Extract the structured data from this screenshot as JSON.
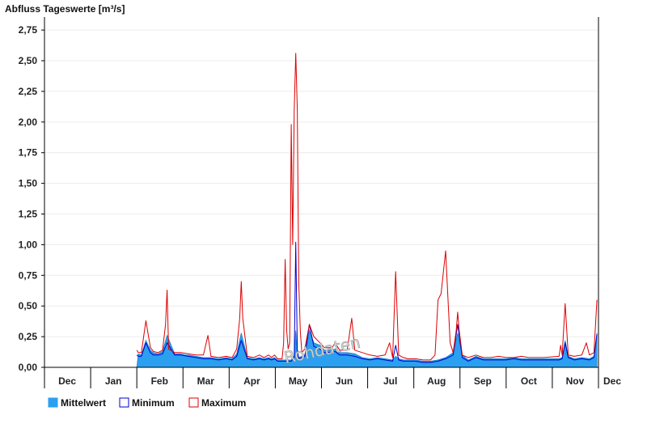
{
  "chart_data": {
    "type": "area",
    "title": "Abfluss Tageswerte [m³/s]",
    "watermark": "Rohdaten",
    "ylim": [
      0,
      2.83
    ],
    "y_ticks": [
      "0,00",
      "0,25",
      "0,50",
      "0,75",
      "1,00",
      "1,25",
      "1,50",
      "1,75",
      "2,00",
      "2,25",
      "2,50",
      "2,75"
    ],
    "y_tick_values": [
      0,
      0.25,
      0.5,
      0.75,
      1.0,
      1.25,
      1.5,
      1.75,
      2.0,
      2.25,
      2.5,
      2.75
    ],
    "x_ticks": [
      "Dec",
      "Jan",
      "Feb",
      "Mar",
      "Apr",
      "May",
      "Jun",
      "Jul",
      "Aug",
      "Sep",
      "Oct",
      "Nov",
      "Dec"
    ],
    "x_range_days": [
      0,
      366
    ],
    "grid": true,
    "legend_position": "bottom-left",
    "series": [
      {
        "name": "Mittelwert",
        "color": "#2b9ff0",
        "style": "area",
        "x": [
          0,
          61,
          62,
          64,
          67,
          70,
          72,
          75,
          78,
          81,
          86,
          88,
          90,
          93,
          95,
          100,
          105,
          110,
          115,
          120,
          124,
          127,
          130,
          134,
          138,
          142,
          145,
          148,
          150,
          152,
          154,
          157,
          160,
          163,
          165,
          166,
          167,
          168,
          170,
          172,
          175,
          178,
          182,
          185,
          188,
          190,
          192,
          195,
          200,
          205,
          210,
          215,
          220,
          225,
          230,
          232,
          234,
          237,
          240,
          245,
          250,
          255,
          260,
          265,
          270,
          273,
          276,
          280,
          285,
          290,
          295,
          300,
          305,
          310,
          315,
          320,
          330,
          340,
          342,
          344,
          346,
          350,
          355,
          360,
          363,
          365
        ],
        "y": [
          0,
          0,
          0.11,
          0.1,
          0.22,
          0.14,
          0.12,
          0.11,
          0.13,
          0.26,
          0.11,
          0.11,
          0.11,
          0.1,
          0.1,
          0.09,
          0.08,
          0.08,
          0.07,
          0.08,
          0.07,
          0.11,
          0.28,
          0.08,
          0.07,
          0.08,
          0.07,
          0.08,
          0.07,
          0.08,
          0.06,
          0.06,
          0.06,
          0.06,
          0.1,
          0.3,
          0.1,
          0.08,
          0.09,
          0.1,
          0.3,
          0.2,
          0.18,
          0.14,
          0.14,
          0.14,
          0.15,
          0.12,
          0.12,
          0.11,
          0.08,
          0.07,
          0.08,
          0.07,
          0.06,
          0.09,
          0.07,
          0.06,
          0.06,
          0.06,
          0.05,
          0.05,
          0.06,
          0.08,
          0.12,
          0.28,
          0.1,
          0.06,
          0.09,
          0.07,
          0.07,
          0.07,
          0.07,
          0.08,
          0.07,
          0.07,
          0.07,
          0.07,
          0.08,
          0.22,
          0.09,
          0.07,
          0.08,
          0.07,
          0.09,
          0.28
        ]
      },
      {
        "name": "Minimum",
        "color": "#0000cc",
        "style": "line",
        "x": [
          61,
          62,
          64,
          67,
          70,
          72,
          75,
          78,
          81,
          86,
          90,
          95,
          100,
          105,
          110,
          115,
          120,
          124,
          127,
          130,
          134,
          138,
          142,
          145,
          148,
          150,
          152,
          154,
          157,
          160,
          163,
          165,
          166,
          167,
          168,
          170,
          172,
          175,
          178,
          182,
          185,
          188,
          190,
          192,
          195,
          200,
          205,
          210,
          215,
          220,
          225,
          230,
          232,
          234,
          237,
          240,
          245,
          250,
          255,
          260,
          265,
          270,
          273,
          276,
          280,
          285,
          290,
          295,
          300,
          305,
          310,
          315,
          320,
          330,
          340,
          342,
          344,
          346,
          350,
          355,
          360,
          363,
          365
        ],
        "y": [
          0.1,
          0.09,
          0.09,
          0.2,
          0.12,
          0.1,
          0.1,
          0.11,
          0.2,
          0.1,
          0.1,
          0.09,
          0.08,
          0.07,
          0.07,
          0.06,
          0.07,
          0.06,
          0.09,
          0.22,
          0.07,
          0.06,
          0.07,
          0.06,
          0.07,
          0.06,
          0.07,
          0.05,
          0.05,
          0.05,
          0.05,
          0.08,
          1.02,
          0.15,
          0.07,
          0.08,
          0.09,
          0.35,
          0.17,
          0.15,
          0.12,
          0.12,
          0.12,
          0.13,
          0.1,
          0.1,
          0.09,
          0.07,
          0.06,
          0.07,
          0.06,
          0.05,
          0.18,
          0.06,
          0.05,
          0.05,
          0.05,
          0.04,
          0.04,
          0.05,
          0.07,
          0.1,
          0.35,
          0.08,
          0.05,
          0.08,
          0.06,
          0.06,
          0.06,
          0.06,
          0.07,
          0.06,
          0.06,
          0.06,
          0.06,
          0.07,
          0.2,
          0.08,
          0.06,
          0.07,
          0.06,
          0.08,
          0.27
        ]
      },
      {
        "name": "Maximum",
        "color": "#dd0000",
        "style": "line",
        "x": [
          61,
          62,
          64,
          67,
          70,
          72,
          75,
          78,
          80,
          81,
          82,
          86,
          90,
          95,
          100,
          105,
          108,
          110,
          115,
          120,
          124,
          127,
          129,
          130,
          131,
          134,
          138,
          142,
          145,
          148,
          150,
          152,
          154,
          157,
          158,
          159,
          160,
          161,
          162,
          163,
          164,
          165,
          166,
          167,
          168,
          169,
          170,
          172,
          175,
          178,
          182,
          185,
          188,
          190,
          192,
          195,
          200,
          203,
          205,
          210,
          215,
          220,
          225,
          228,
          230,
          232,
          234,
          237,
          240,
          245,
          250,
          255,
          258,
          260,
          262,
          265,
          268,
          270,
          272,
          273,
          274,
          276,
          280,
          285,
          290,
          295,
          300,
          305,
          310,
          315,
          320,
          330,
          340,
          341,
          342,
          344,
          346,
          350,
          355,
          358,
          360,
          363,
          365
        ],
        "y": [
          0.14,
          0.12,
          0.12,
          0.38,
          0.16,
          0.13,
          0.12,
          0.14,
          0.35,
          0.63,
          0.15,
          0.12,
          0.12,
          0.11,
          0.1,
          0.1,
          0.26,
          0.09,
          0.08,
          0.09,
          0.08,
          0.15,
          0.4,
          0.7,
          0.4,
          0.09,
          0.08,
          0.1,
          0.08,
          0.1,
          0.08,
          0.1,
          0.07,
          0.07,
          0.2,
          0.88,
          0.3,
          0.15,
          0.2,
          1.98,
          1.0,
          2.1,
          2.56,
          2.1,
          0.7,
          0.3,
          0.12,
          0.15,
          0.35,
          0.25,
          0.2,
          0.16,
          0.16,
          0.16,
          0.2,
          0.14,
          0.14,
          0.4,
          0.14,
          0.12,
          0.1,
          0.09,
          0.1,
          0.2,
          0.08,
          0.78,
          0.1,
          0.08,
          0.07,
          0.07,
          0.06,
          0.06,
          0.1,
          0.55,
          0.6,
          0.95,
          0.2,
          0.12,
          0.3,
          0.45,
          0.3,
          0.1,
          0.08,
          0.1,
          0.08,
          0.08,
          0.09,
          0.08,
          0.08,
          0.09,
          0.08,
          0.08,
          0.09,
          0.18,
          0.1,
          0.52,
          0.1,
          0.09,
          0.1,
          0.2,
          0.1,
          0.12,
          0.55
        ]
      }
    ]
  }
}
